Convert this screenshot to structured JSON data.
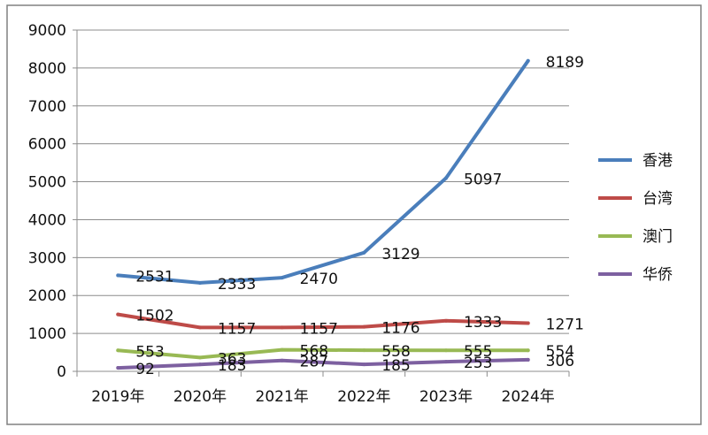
{
  "chart_data": {
    "type": "line",
    "title": "",
    "xlabel": "",
    "ylabel": "",
    "categories": [
      "2019年",
      "2020年",
      "2021年",
      "2022年",
      "2023年",
      "2024年"
    ],
    "y_ticks": [
      "0",
      "1000",
      "2000",
      "3000",
      "4000",
      "5000",
      "6000",
      "7000",
      "8000",
      "9000"
    ],
    "ylim": [
      0,
      9000
    ],
    "grid": "horizontal",
    "legend_position": "right",
    "series": [
      {
        "name": "香港",
        "color": "#4a7ebb",
        "values": [
          2531,
          2333,
          2470,
          3129,
          5097,
          8189
        ],
        "labels": [
          "2531",
          "2333",
          "2470",
          "3129",
          "5097",
          "8189"
        ]
      },
      {
        "name": "台湾",
        "color": "#be4b48",
        "values": [
          1502,
          1157,
          1157,
          1176,
          1333,
          1271
        ],
        "labels": [
          "1502",
          "1157",
          "1157",
          "1176",
          "1333",
          "1271"
        ]
      },
      {
        "name": "澳门",
        "color": "#98b954",
        "values": [
          553,
          363,
          568,
          558,
          555,
          554
        ],
        "labels": [
          "553",
          "363",
          "568",
          "558",
          "555",
          "554"
        ]
      },
      {
        "name": "华侨",
        "color": "#7d60a0",
        "values": [
          92,
          183,
          287,
          185,
          253,
          306
        ],
        "labels": [
          "92",
          "183",
          "287",
          "185",
          "253",
          "306"
        ]
      }
    ]
  }
}
